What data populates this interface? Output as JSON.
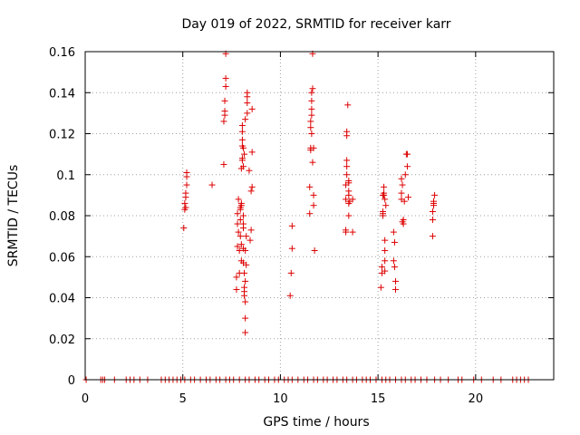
{
  "chart_data": {
    "type": "scatter",
    "title": "Day 019 of 2022, SRMTID for receiver karr",
    "xlabel": "GPS time / hours",
    "ylabel": "SRMTID / TECUs",
    "xlim": [
      0,
      24
    ],
    "ylim": [
      0,
      0.16
    ],
    "xticks": [
      0,
      5,
      10,
      15,
      20
    ],
    "xtick_labels": [
      "0",
      "5",
      "10",
      "15",
      "20"
    ],
    "yticks": [
      0,
      0.02,
      0.04,
      0.06,
      0.08,
      0.1,
      0.12,
      0.14,
      0.16
    ],
    "ytick_labels": [
      "0",
      "0.02",
      "0.04",
      "0.06",
      "0.08",
      "0.1",
      "0.12",
      "0.14",
      "0.16"
    ],
    "grid": true,
    "legend": "none",
    "marker": "plus",
    "series": [
      {
        "color": "#dd0000",
        "points": [
          [
            0.05,
            0
          ],
          [
            0.8,
            0
          ],
          [
            0.9,
            0
          ],
          [
            1.0,
            0
          ],
          [
            1.5,
            0
          ],
          [
            2.1,
            0
          ],
          [
            2.3,
            0
          ],
          [
            2.5,
            0
          ],
          [
            2.8,
            0
          ],
          [
            3.2,
            0
          ],
          [
            3.9,
            0
          ],
          [
            4.1,
            0
          ],
          [
            4.3,
            0
          ],
          [
            4.5,
            0
          ],
          [
            4.7,
            0
          ],
          [
            4.9,
            0
          ],
          [
            5.1,
            0
          ],
          [
            5.4,
            0
          ],
          [
            5.6,
            0
          ],
          [
            5.9,
            0
          ],
          [
            6.2,
            0
          ],
          [
            6.4,
            0
          ],
          [
            6.7,
            0
          ],
          [
            6.9,
            0
          ],
          [
            7.2,
            0
          ],
          [
            7.4,
            0
          ],
          [
            7.6,
            0
          ],
          [
            7.9,
            0
          ],
          [
            8.2,
            0
          ],
          [
            8.4,
            0
          ],
          [
            8.7,
            0
          ],
          [
            8.9,
            0
          ],
          [
            9.2,
            0
          ],
          [
            9.4,
            0
          ],
          [
            9.7,
            0
          ],
          [
            9.9,
            0
          ],
          [
            10.2,
            0
          ],
          [
            10.4,
            0
          ],
          [
            10.6,
            0
          ],
          [
            10.9,
            0
          ],
          [
            11.2,
            0
          ],
          [
            11.4,
            0
          ],
          [
            11.7,
            0
          ],
          [
            11.9,
            0
          ],
          [
            12.2,
            0
          ],
          [
            12.4,
            0
          ],
          [
            12.7,
            0
          ],
          [
            12.9,
            0
          ],
          [
            13.2,
            0
          ],
          [
            13.4,
            0
          ],
          [
            13.7,
            0
          ],
          [
            13.9,
            0
          ],
          [
            14.2,
            0
          ],
          [
            14.4,
            0
          ],
          [
            14.6,
            0
          ],
          [
            14.9,
            0
          ],
          [
            15.2,
            0
          ],
          [
            15.4,
            0
          ],
          [
            15.6,
            0
          ],
          [
            15.9,
            0
          ],
          [
            16.2,
            0
          ],
          [
            16.4,
            0
          ],
          [
            16.7,
            0
          ],
          [
            16.9,
            0
          ],
          [
            17.2,
            0
          ],
          [
            17.5,
            0
          ],
          [
            17.9,
            0
          ],
          [
            18.2,
            0
          ],
          [
            18.6,
            0
          ],
          [
            19.1,
            0
          ],
          [
            19.3,
            0
          ],
          [
            19.9,
            0
          ],
          [
            20.3,
            0
          ],
          [
            20.9,
            0
          ],
          [
            21.3,
            0
          ],
          [
            21.9,
            0
          ],
          [
            22.1,
            0
          ],
          [
            22.3,
            0
          ],
          [
            22.5,
            0
          ],
          [
            22.7,
            0
          ],
          [
            5.05,
            0.074
          ],
          [
            5.1,
            0.083
          ],
          [
            5.1,
            0.086
          ],
          [
            5.15,
            0.089
          ],
          [
            5.15,
            0.091
          ],
          [
            5.2,
            0.095
          ],
          [
            5.2,
            0.099
          ],
          [
            5.2,
            0.101
          ],
          [
            5.15,
            0.084
          ],
          [
            6.5,
            0.095
          ],
          [
            7.1,
            0.105
          ],
          [
            7.1,
            0.126
          ],
          [
            7.15,
            0.129
          ],
          [
            7.15,
            0.131
          ],
          [
            7.15,
            0.136
          ],
          [
            7.2,
            0.143
          ],
          [
            7.2,
            0.147
          ],
          [
            7.2,
            0.159
          ],
          [
            7.75,
            0.05
          ],
          [
            7.75,
            0.044
          ],
          [
            7.8,
            0.065
          ],
          [
            7.8,
            0.076
          ],
          [
            7.8,
            0.081
          ],
          [
            7.85,
            0.088
          ],
          [
            7.85,
            0.072
          ],
          [
            7.9,
            0.052
          ],
          [
            7.9,
            0.063
          ],
          [
            7.95,
            0.07
          ],
          [
            7.95,
            0.078
          ],
          [
            7.95,
            0.083
          ],
          [
            7.95,
            0.084
          ],
          [
            8.0,
            0.085
          ],
          [
            8.0,
            0.086
          ],
          [
            8.0,
            0.066
          ],
          [
            8.0,
            0.058
          ],
          [
            8.0,
            0.103
          ],
          [
            8.05,
            0.107
          ],
          [
            8.05,
            0.108
          ],
          [
            8.05,
            0.114
          ],
          [
            8.05,
            0.117
          ],
          [
            8.05,
            0.121
          ],
          [
            8.05,
            0.124
          ],
          [
            8.1,
            0.113
          ],
          [
            8.1,
            0.104
          ],
          [
            8.1,
            0.08
          ],
          [
            8.1,
            0.076
          ],
          [
            8.1,
            0.074
          ],
          [
            8.1,
            0.064
          ],
          [
            8.1,
            0.057
          ],
          [
            8.15,
            0.052
          ],
          [
            8.15,
            0.045
          ],
          [
            8.15,
            0.043
          ],
          [
            8.15,
            0.041
          ],
          [
            8.2,
            0.038
          ],
          [
            8.2,
            0.03
          ],
          [
            8.2,
            0.023
          ],
          [
            8.2,
            0.048
          ],
          [
            8.2,
            0.063
          ],
          [
            8.25,
            0.056
          ],
          [
            8.25,
            0.07
          ],
          [
            8.3,
            0.13
          ],
          [
            8.3,
            0.135
          ],
          [
            8.3,
            0.138
          ],
          [
            8.3,
            0.14
          ],
          [
            8.4,
            0.102
          ],
          [
            8.45,
            0.068
          ],
          [
            8.5,
            0.073
          ],
          [
            8.5,
            0.092
          ],
          [
            8.55,
            0.094
          ],
          [
            8.55,
            0.111
          ],
          [
            8.55,
            0.132
          ],
          [
            8.2,
            0.127
          ],
          [
            8.15,
            0.11
          ],
          [
            10.5,
            0.041
          ],
          [
            10.55,
            0.052
          ],
          [
            10.6,
            0.064
          ],
          [
            10.6,
            0.075
          ],
          [
            11.5,
            0.081
          ],
          [
            11.5,
            0.094
          ],
          [
            11.55,
            0.113
          ],
          [
            11.55,
            0.112
          ],
          [
            11.55,
            0.123
          ],
          [
            11.6,
            0.129
          ],
          [
            11.6,
            0.132
          ],
          [
            11.6,
            0.136
          ],
          [
            11.6,
            0.14
          ],
          [
            11.65,
            0.142
          ],
          [
            11.65,
            0.159
          ],
          [
            11.65,
            0.106
          ],
          [
            11.7,
            0.113
          ],
          [
            11.7,
            0.09
          ],
          [
            11.7,
            0.085
          ],
          [
            11.75,
            0.063
          ],
          [
            11.6,
            0.12
          ],
          [
            11.55,
            0.126
          ],
          [
            13.35,
            0.072
          ],
          [
            13.35,
            0.073
          ],
          [
            13.35,
            0.088
          ],
          [
            13.35,
            0.095
          ],
          [
            13.4,
            0.1
          ],
          [
            13.4,
            0.104
          ],
          [
            13.4,
            0.107
          ],
          [
            13.4,
            0.119
          ],
          [
            13.4,
            0.121
          ],
          [
            13.45,
            0.134
          ],
          [
            13.5,
            0.097
          ],
          [
            13.5,
            0.092
          ],
          [
            13.5,
            0.086
          ],
          [
            13.5,
            0.08
          ],
          [
            13.55,
            0.087
          ],
          [
            13.5,
            0.09
          ],
          [
            13.5,
            0.096
          ],
          [
            13.7,
            0.072
          ],
          [
            13.7,
            0.088
          ],
          [
            15.15,
            0.045
          ],
          [
            15.2,
            0.052
          ],
          [
            15.2,
            0.055
          ],
          [
            15.25,
            0.08
          ],
          [
            15.25,
            0.081
          ],
          [
            15.25,
            0.082
          ],
          [
            15.25,
            0.09
          ],
          [
            15.3,
            0.09
          ],
          [
            15.3,
            0.091
          ],
          [
            15.3,
            0.094
          ],
          [
            15.35,
            0.063
          ],
          [
            15.35,
            0.068
          ],
          [
            15.35,
            0.053
          ],
          [
            15.35,
            0.058
          ],
          [
            15.4,
            0.085
          ],
          [
            15.35,
            0.088
          ],
          [
            15.8,
            0.072
          ],
          [
            15.8,
            0.058
          ],
          [
            15.85,
            0.067
          ],
          [
            15.85,
            0.055
          ],
          [
            15.9,
            0.048
          ],
          [
            15.9,
            0.044
          ],
          [
            16.2,
            0.088
          ],
          [
            16.2,
            0.091
          ],
          [
            16.25,
            0.095
          ],
          [
            16.25,
            0.077
          ],
          [
            16.3,
            0.076
          ],
          [
            16.3,
            0.078
          ],
          [
            16.35,
            0.087
          ],
          [
            16.4,
            0.1
          ],
          [
            16.45,
            0.11
          ],
          [
            16.5,
            0.11
          ],
          [
            16.5,
            0.104
          ],
          [
            16.55,
            0.089
          ],
          [
            16.2,
            0.098
          ],
          [
            17.8,
            0.07
          ],
          [
            17.8,
            0.078
          ],
          [
            17.8,
            0.082
          ],
          [
            17.85,
            0.085
          ],
          [
            17.85,
            0.087
          ],
          [
            17.85,
            0.086
          ],
          [
            17.9,
            0.09
          ]
        ]
      }
    ]
  }
}
